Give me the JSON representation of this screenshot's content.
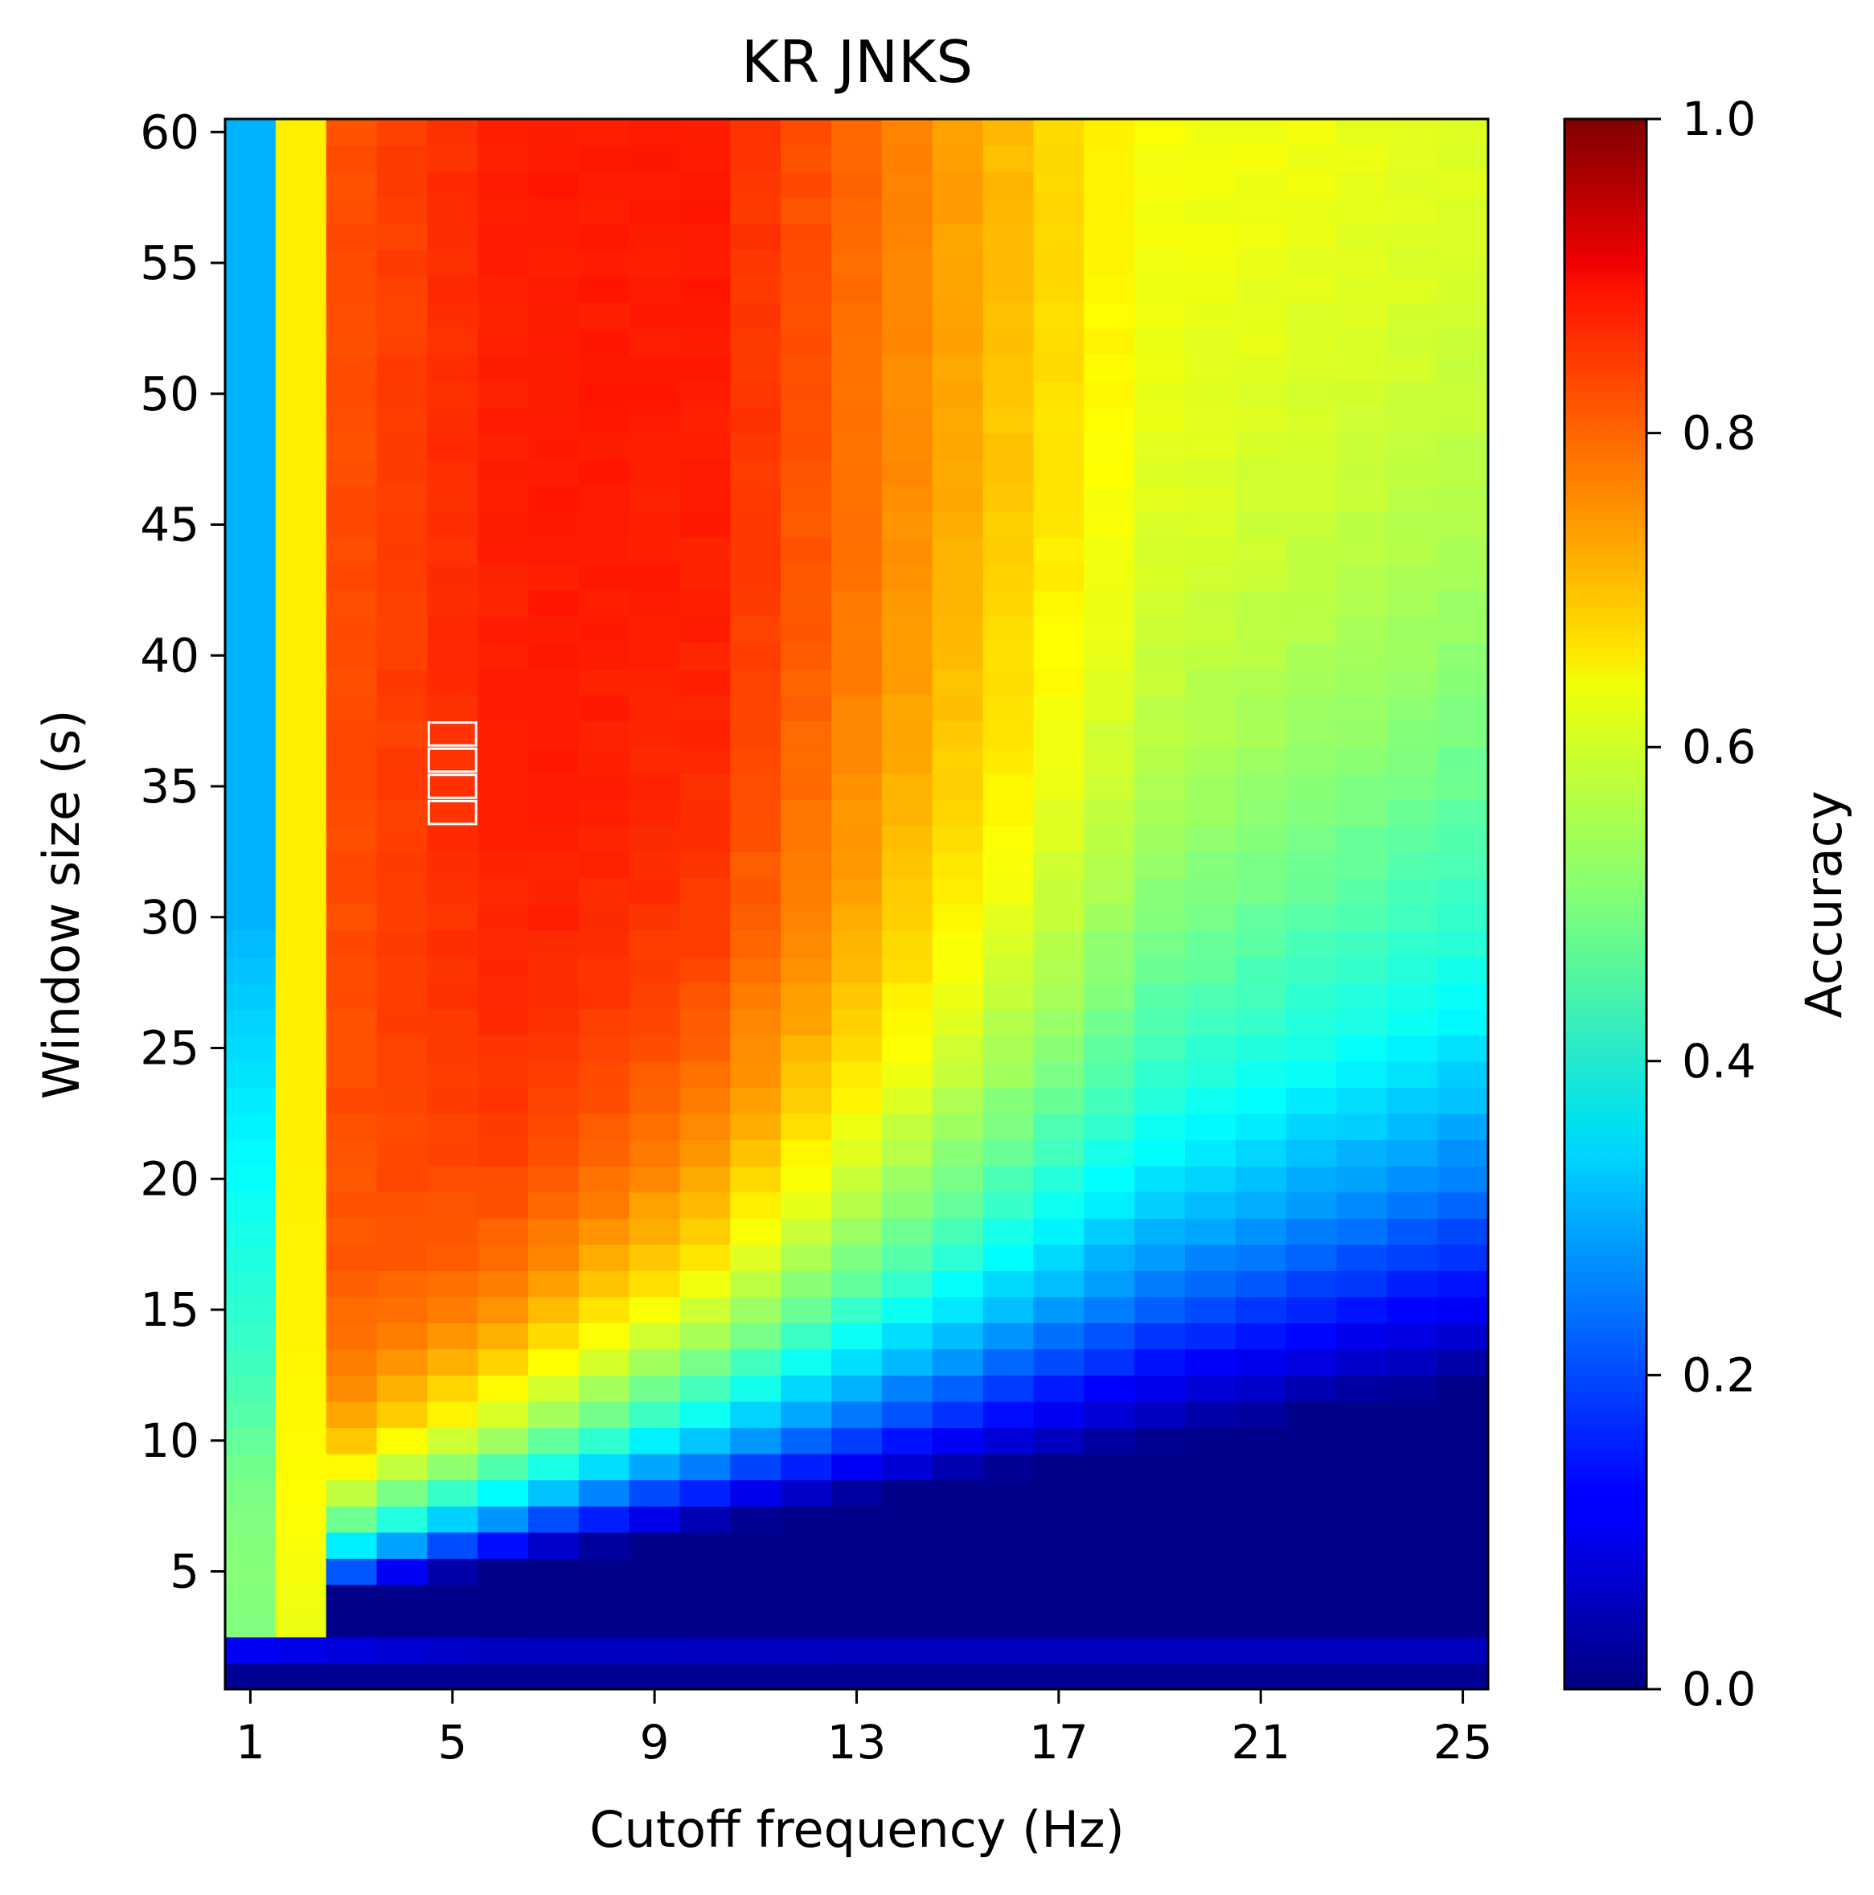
{
  "chart_data": {
    "type": "heatmap",
    "title": "KR JNKS",
    "xlabel": "Cutoff frequency (Hz)",
    "ylabel": "Window size (s)",
    "x_range": [
      1,
      25
    ],
    "y_range": [
      1,
      60
    ],
    "x_ticks": [
      1,
      5,
      9,
      13,
      17,
      21,
      25
    ],
    "y_ticks": [
      5,
      10,
      15,
      20,
      25,
      30,
      35,
      40,
      45,
      50,
      55,
      60
    ],
    "colorbar": {
      "label": "Accuracy",
      "range": [
        0.0,
        1.0
      ],
      "ticks": [
        0.0,
        0.2,
        0.4,
        0.6,
        0.8,
        1.0
      ],
      "tick_labels": [
        "0.0",
        "0.2",
        "0.4",
        "0.6",
        "0.8",
        "1.0"
      ],
      "colormap": "jet"
    },
    "highlighted_cells": [
      {
        "x": 5,
        "y": 37
      },
      {
        "x": 5,
        "y": 36
      },
      {
        "x": 5,
        "y": 35
      },
      {
        "x": 5,
        "y": 34
      }
    ],
    "value_model": {
      "description_points": {
        "x1_high_window": 0.3,
        "x1_low_window": 0.5,
        "x2": 0.62,
        "peak": 0.86,
        "corner_x25_y60": 0.63,
        "corner_x25_y1": 0.02
      }
    }
  }
}
